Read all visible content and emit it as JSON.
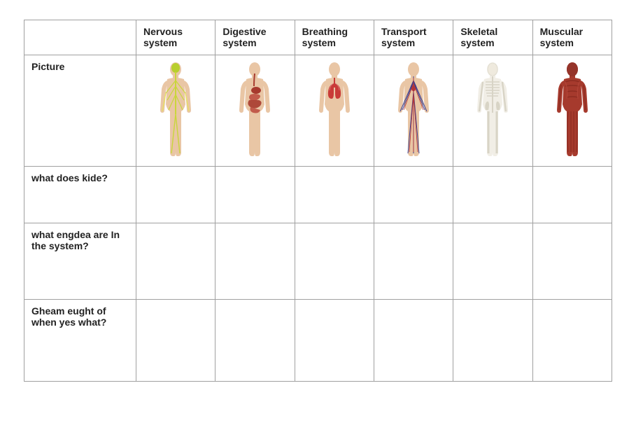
{
  "table": {
    "columns": [
      {
        "key": "nervous",
        "label": "Nervous system",
        "skin": "#e9c6a5",
        "primary": "#c9d63b",
        "secondary": "#e6e35a",
        "head_overlay": "#b8cf2e",
        "svg": "nerves"
      },
      {
        "key": "digestive",
        "label": "Digestive system",
        "skin": "#e9c6a5",
        "primary": "#a73a2e",
        "secondary": "#c25b4b",
        "head_overlay": null,
        "svg": "digestive"
      },
      {
        "key": "breathing",
        "label": "Breathing system",
        "skin": "#e9c6a5",
        "primary": "#c93b38",
        "secondary": "#d9827b",
        "head_overlay": null,
        "svg": "lungs"
      },
      {
        "key": "transport",
        "label": "Transport system",
        "skin": "#e9c6a5",
        "primary": "#3d3f8e",
        "secondary": "#b83434",
        "head_overlay": null,
        "svg": "circulatory"
      },
      {
        "key": "skeletal",
        "label": "Skeletal system",
        "skin": "#f1eee6",
        "primary": "#d8d4c6",
        "secondary": "#cfcab8",
        "head_overlay": "#efeade",
        "svg": "skeleton"
      },
      {
        "key": "muscular",
        "label": "Muscular system",
        "skin": "#a63a2d",
        "primary": "#8e2d22",
        "secondary": "#b5473a",
        "head_overlay": "#95342a",
        "svg": "muscles"
      }
    ],
    "row_labels": {
      "picture": "Picture",
      "q1": "what does kide?",
      "q2": "what engdea are In the system?",
      "q3": "Gheam eught of when yes what?"
    },
    "border_color": "#a0a0a0",
    "header_fontsize": 14,
    "cell_fontsize": 14
  }
}
